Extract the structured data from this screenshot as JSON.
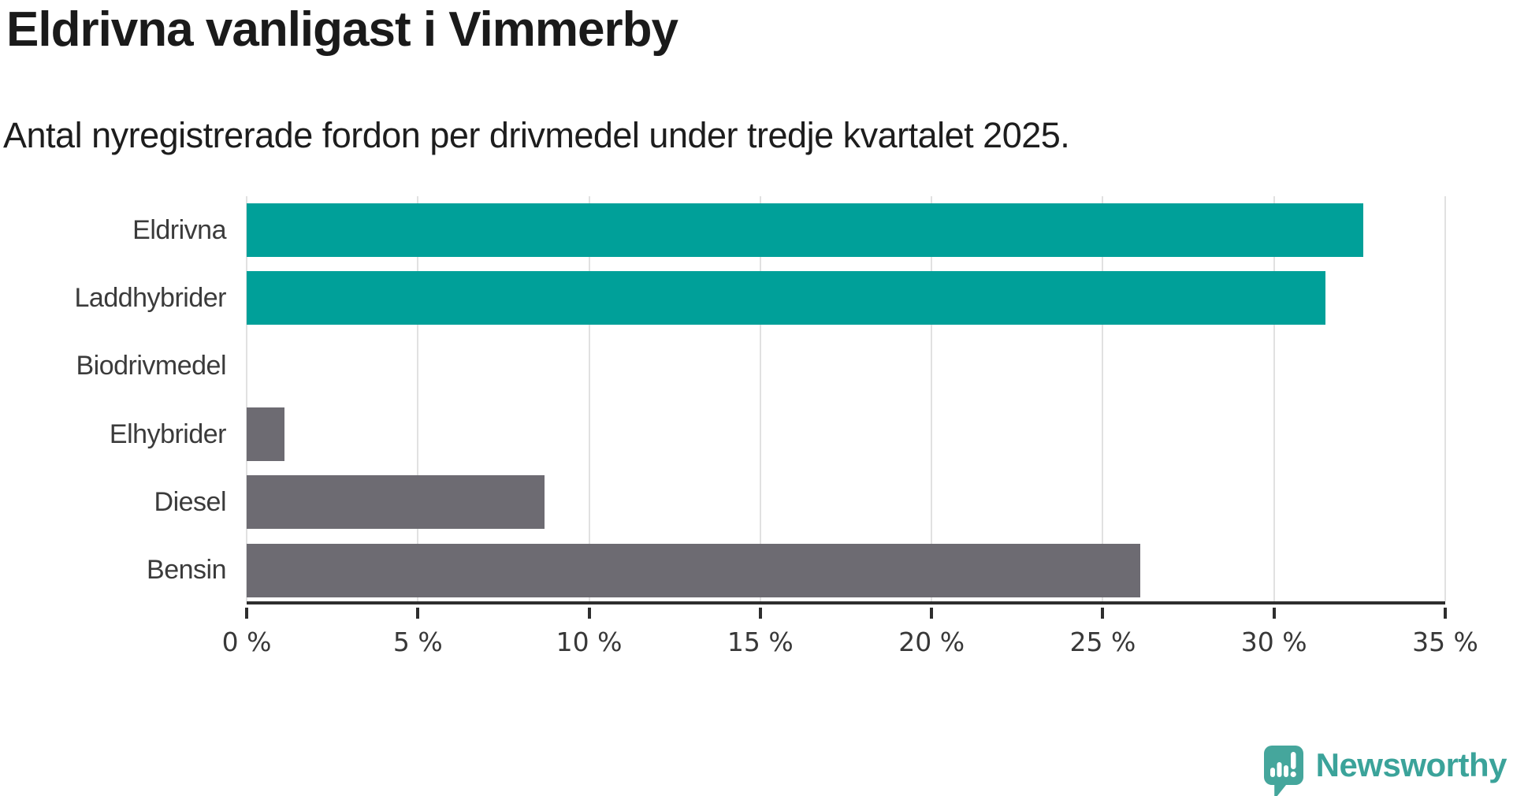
{
  "header": {
    "title": "Eldrivna vanligast i Vimmerby",
    "subtitle": "Antal nyregistrerade fordon per drivmedel under tredje kvartalet 2025."
  },
  "chart_data": {
    "type": "bar",
    "orientation": "horizontal",
    "title": "Eldrivna vanligast i Vimmerby",
    "subtitle": "Antal nyregistrerade fordon per drivmedel under tredje kvartalet 2025.",
    "categories": [
      "Eldrivna",
      "Laddhybrider",
      "Biodrivmedel",
      "Elhybrider",
      "Diesel",
      "Bensin"
    ],
    "values": [
      32.6,
      31.5,
      0,
      1.1,
      8.7,
      26.1
    ],
    "unit": "%",
    "xlim": [
      0,
      35
    ],
    "xticks": [
      0,
      5,
      10,
      15,
      20,
      25,
      30,
      35
    ],
    "xtick_labels": [
      "0 %",
      "5 %",
      "10 %",
      "15 %",
      "20 %",
      "25 %",
      "30 %",
      "35 %"
    ],
    "grid": "vertical",
    "legend": "none",
    "xlabel": "",
    "ylabel": "",
    "bar_colors": [
      "#00a099",
      "#00a099",
      "#6d6b72",
      "#6d6b72",
      "#6d6b72",
      "#6d6b72"
    ],
    "highlight_color": "#00a099",
    "default_color": "#6d6b72"
  },
  "footer": {
    "brand": "Newsworthy"
  },
  "colors": {
    "background": "#ffffff",
    "axis": "#2e2e2e",
    "gridline": "#e1e1e1",
    "title_text": "#1a1a1a",
    "label_text": "#3b3b3b",
    "brand_teal": "#3ba39a",
    "icon_teal": "#45a69c"
  }
}
